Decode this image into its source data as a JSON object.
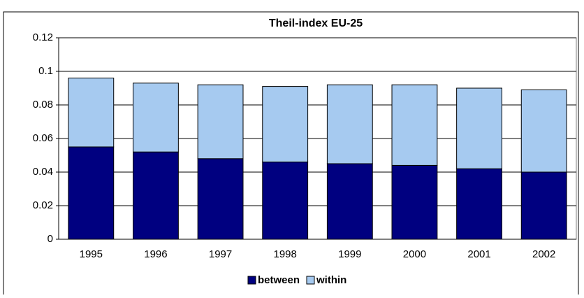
{
  "chart_data": {
    "type": "stacked_bar",
    "title": "Theil-index EU-25",
    "categories": [
      "1995",
      "1996",
      "1997",
      "1998",
      "1999",
      "2000",
      "2001",
      "2002"
    ],
    "series": [
      {
        "name": "between",
        "color": "#000080",
        "values": [
          0.055,
          0.052,
          0.048,
          0.046,
          0.045,
          0.044,
          0.042,
          0.04
        ]
      },
      {
        "name": "within",
        "color": "#a6caf0",
        "values": [
          0.041,
          0.041,
          0.044,
          0.045,
          0.047,
          0.048,
          0.048,
          0.049
        ]
      }
    ],
    "ylim": [
      0,
      0.12
    ],
    "yticks": [
      0,
      0.02,
      0.04,
      0.06,
      0.08,
      0.1,
      0.12
    ],
    "grid": true,
    "legend": "bottom"
  }
}
